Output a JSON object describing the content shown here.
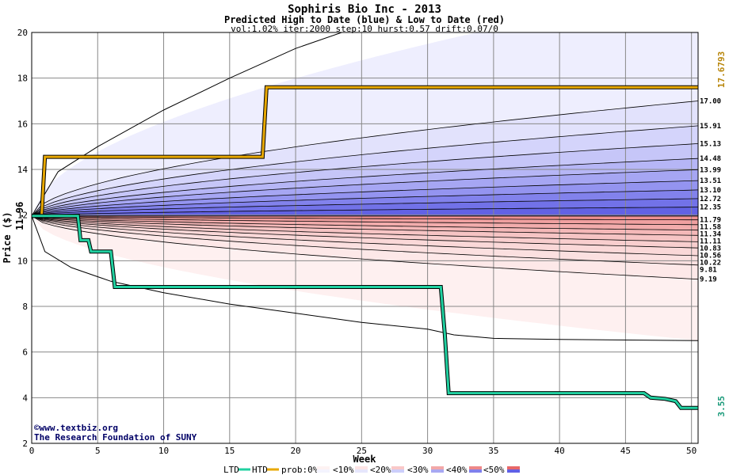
{
  "chart_data": {
    "type": "area",
    "title": "Sophiris Bio Inc - 2013",
    "subtitle": "Predicted High to Date (blue) &  Low to Date (red)",
    "params": "vol:1.02% iter:2000 step:10 hurst:0.57 drift:0.07/0",
    "xlabel": "Week",
    "ylabel": "Price ($)",
    "xlim": [
      0,
      50.5
    ],
    "ylim": [
      2,
      20
    ],
    "x_ticks": [
      0,
      5,
      10,
      15,
      20,
      25,
      30,
      35,
      40,
      45,
      50
    ],
    "y_ticks": [
      2,
      4,
      6,
      8,
      10,
      12,
      14,
      16,
      18,
      20
    ],
    "grid": true,
    "start_price": 11.96,
    "start_price_label": "11.96",
    "hi_marker_label": "17.6793",
    "lo_marker_label": "3.55",
    "high_levels": [
      "17.00",
      "15.91",
      "15.13",
      "14.48",
      "13.99",
      "13.51",
      "13.10",
      "12.72",
      "12.35"
    ],
    "low_levels": [
      "11.79",
      "11.58",
      "11.34",
      "11.11",
      "10.83",
      "10.56",
      "10.22",
      "9.81",
      "9.19"
    ],
    "high_band_end_values": [
      22,
      17.0,
      15.91,
      15.13,
      14.48,
      13.99,
      13.51,
      13.1,
      12.72,
      12.35,
      11.96
    ],
    "high_band_colors": [
      "#eeeefe",
      "#e2e2fc",
      "#d4d4fb",
      "#c6c6f8",
      "#b6b6f6",
      "#a6a6f3",
      "#9494f0",
      "#8282ec",
      "#7272e8",
      "#6262e4"
    ],
    "low_band_end_values": [
      11.96,
      11.79,
      11.58,
      11.34,
      11.11,
      10.83,
      10.56,
      10.22,
      9.81,
      9.19,
      6.5
    ],
    "low_band_colors": [
      "#ee9090",
      "#f0a0a0",
      "#f2acac",
      "#f4b8b8",
      "#f6c4c4",
      "#f8cece",
      "#fad8d8",
      "#fbe0e0",
      "#fde8e8",
      "#fef0f0"
    ],
    "outer_curves": {
      "upper": [
        [
          0,
          11.96
        ],
        [
          2,
          13.9
        ],
        [
          5,
          15.0
        ],
        [
          10,
          16.6
        ],
        [
          15,
          18.0
        ],
        [
          20,
          19.3
        ],
        [
          24,
          20.1
        ]
      ],
      "lower": [
        [
          0,
          11.96
        ],
        [
          1,
          10.4
        ],
        [
          3,
          9.7
        ],
        [
          6,
          9.1
        ],
        [
          10,
          8.6
        ],
        [
          15,
          8.1
        ],
        [
          20,
          7.7
        ],
        [
          25,
          7.3
        ],
        [
          30,
          7.0
        ],
        [
          32,
          6.75
        ],
        [
          35,
          6.6
        ],
        [
          40,
          6.55
        ],
        [
          50.5,
          6.5
        ]
      ]
    },
    "series": [
      {
        "name": "HTD",
        "color": "#e8a800",
        "points": [
          [
            0,
            11.96
          ],
          [
            0.75,
            11.96
          ],
          [
            1,
            14.55
          ],
          [
            17.5,
            14.55
          ],
          [
            17.8,
            17.6
          ],
          [
            50.5,
            17.6
          ]
        ]
      },
      {
        "name": "LTD",
        "color": "#20d0a0",
        "points": [
          [
            0,
            11.96
          ],
          [
            3.5,
            11.96
          ],
          [
            3.7,
            10.9
          ],
          [
            4.3,
            10.9
          ],
          [
            4.5,
            10.4
          ],
          [
            6,
            10.4
          ],
          [
            6.3,
            8.85
          ],
          [
            31,
            8.85
          ],
          [
            31.3,
            6.8
          ],
          [
            31.6,
            4.2
          ],
          [
            46.4,
            4.2
          ],
          [
            46.9,
            4.0
          ],
          [
            48,
            3.95
          ],
          [
            48.8,
            3.85
          ],
          [
            49.2,
            3.55
          ],
          [
            50.5,
            3.55
          ]
        ]
      }
    ],
    "credit": [
      "©www.textbiz.org",
      "The Research Foundation of SUNY"
    ],
    "legend": {
      "ltd": "LTD",
      "htd": "HTD",
      "prob_label": "prob:0%",
      "bands": [
        "<10%",
        "<20%",
        "<30%",
        "<40%",
        "<50%"
      ],
      "ltd_color": "#20d0a0",
      "htd_color": "#e8a800",
      "band_swatch_colors": [
        [
          "#fdf2f2",
          "#f4f4fe"
        ],
        [
          "#fde4e4",
          "#e6e6fc"
        ],
        [
          "#f9c8c8",
          "#cccefa"
        ],
        [
          "#f2a8a8",
          "#a8a8f2"
        ],
        [
          "#ee8888",
          "#8080ec"
        ],
        [
          "#e86868",
          "#6060e6"
        ]
      ]
    }
  }
}
